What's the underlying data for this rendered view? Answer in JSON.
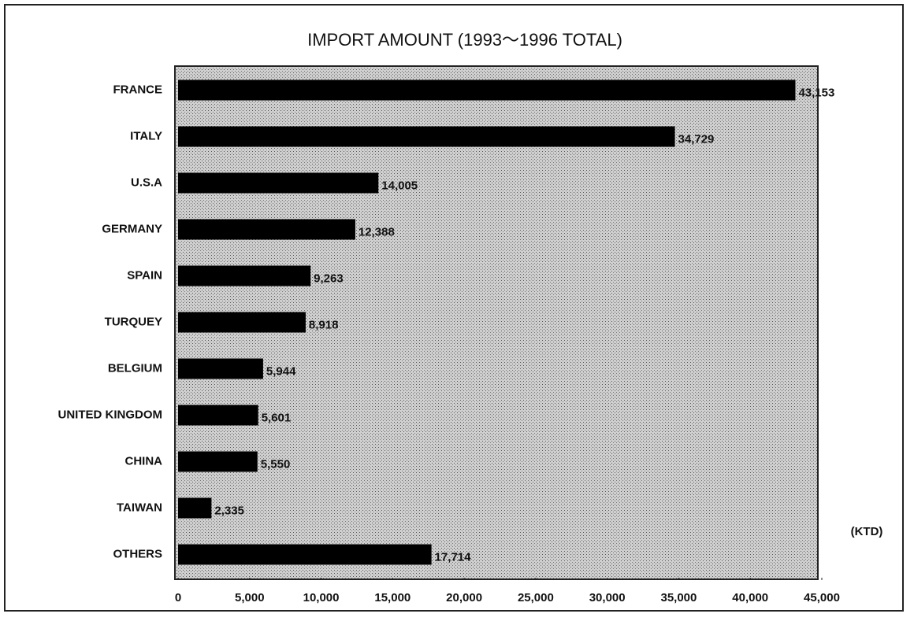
{
  "chart_data": {
    "type": "bar",
    "orientation": "horizontal",
    "title": "IMPORT AMOUNT (1993～1996 TOTAL)",
    "x_unit": "(KTD)",
    "categories": [
      "FRANCE",
      "ITALY",
      "U.S.A",
      "GERMANY",
      "SPAIN",
      "TURQUEY",
      "BELGIUM",
      "UNITED KINGDOM",
      "CHINA",
      "TAIWAN",
      "OTHERS"
    ],
    "values": [
      43153,
      34729,
      14005,
      12388,
      9263,
      8918,
      5944,
      5601,
      5550,
      2335,
      17714
    ],
    "value_labels": [
      "43,153",
      "34,729",
      "14,005",
      "12,388",
      "9,263",
      "8,918",
      "5,944",
      "5,601",
      "5,550",
      "2,335",
      "17,714"
    ],
    "color": "#000000",
    "xlim": [
      0,
      45000
    ],
    "xticks": [
      0,
      {
        "value": 5000,
        "label": "5,000"
      },
      {
        "value": 10000,
        "label": "10,000"
      },
      {
        "value": 15000,
        "label": "15,000"
      },
      {
        "value": 20000,
        "label": "20,000"
      },
      {
        "value": 25000,
        "label": "25,000"
      },
      {
        "value": 30000,
        "label": "30,000"
      },
      {
        "value": 35000,
        "label": "35,000"
      },
      {
        "value": 40000,
        "label": "40,000"
      },
      {
        "value": 45000,
        "label": "45,000"
      }
    ],
    "grid": false
  }
}
